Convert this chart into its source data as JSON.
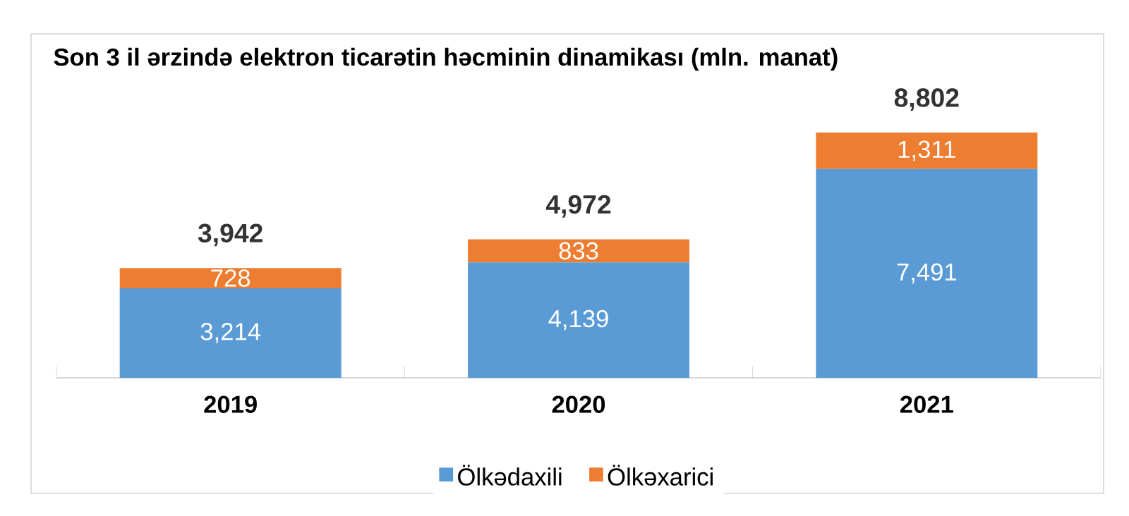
{
  "chart_data": {
    "type": "bar",
    "stacked": true,
    "title": "Son 3 il ərzində elektron ticarətin həcminin dinamikası (mln. manat)",
    "categories": [
      "2019",
      "2020",
      "2021"
    ],
    "series": [
      {
        "name": "Ölkədaxili",
        "color": "#5b9bd5",
        "values": [
          3214,
          4139,
          7491
        ],
        "value_labels": [
          "3,214",
          "4,139",
          "7,491"
        ]
      },
      {
        "name": "Ölkəxarici",
        "color": "#ed7d31",
        "values": [
          728,
          833,
          1311
        ],
        "value_labels": [
          "728",
          "833",
          "1,311"
        ]
      }
    ],
    "totals": [
      "3,942",
      "4,972",
      "8,802"
    ],
    "legend": "bottom"
  }
}
